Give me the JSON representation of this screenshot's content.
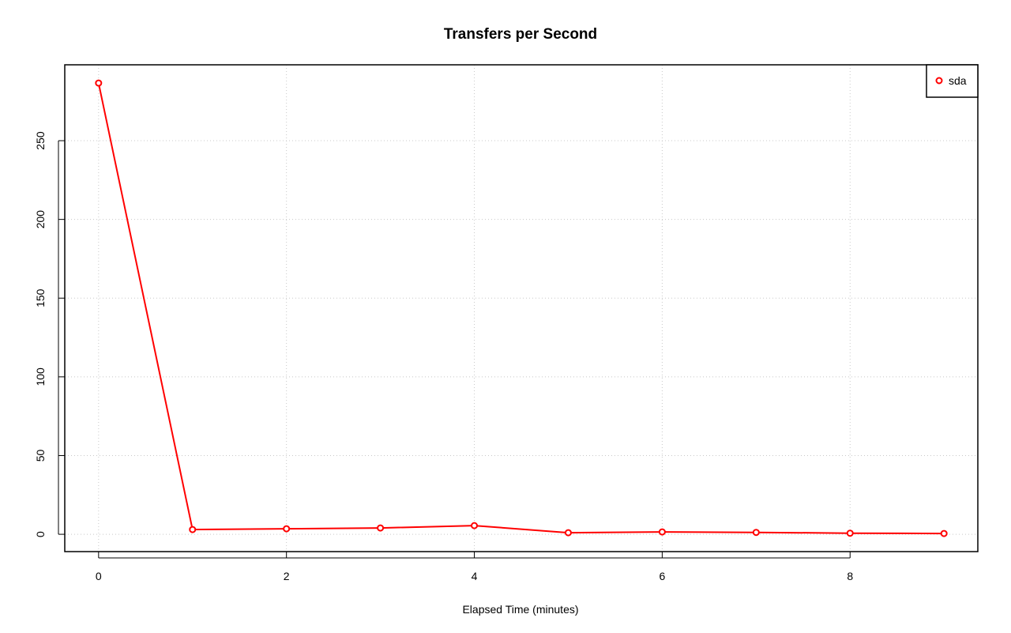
{
  "chart_data": {
    "type": "line",
    "title": "Transfers per Second",
    "x_label": "Elapsed Time (minutes)",
    "x": [
      0,
      1,
      2,
      3,
      4,
      5,
      6,
      7,
      8,
      9
    ],
    "series": [
      {
        "name": "sda",
        "color": "#ff0000",
        "values": [
          286.6,
          3,
          3.5,
          4,
          5.5,
          1,
          1.5,
          1.2,
          0.7,
          0.5
        ]
      }
    ],
    "xlim": [
      -0.36,
      9.36
    ],
    "xticks": [
      0,
      2,
      4,
      6,
      8
    ],
    "ylim": [
      -11,
      298.2
    ],
    "yticks": [
      0,
      50,
      100,
      150,
      200,
      250
    ],
    "grid": true,
    "legend": "top-right"
  }
}
